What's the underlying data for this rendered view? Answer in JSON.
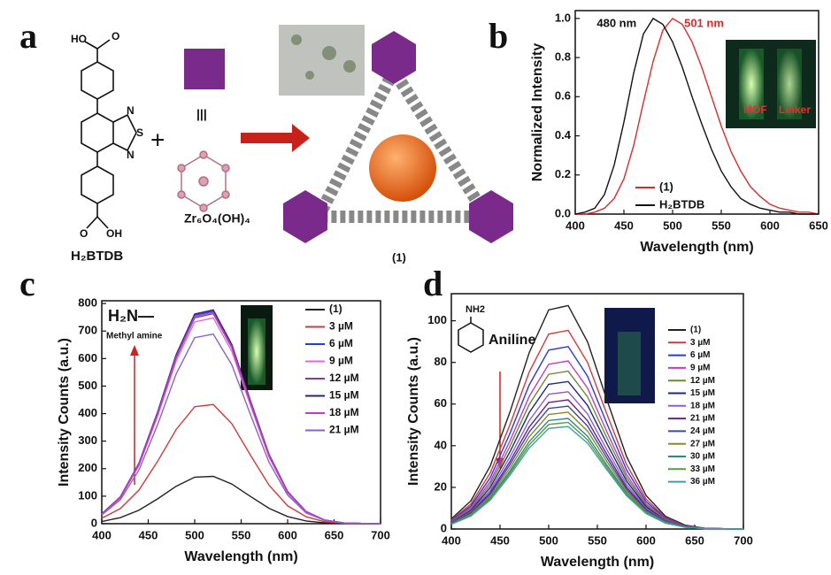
{
  "panels": [
    "a",
    "b",
    "c",
    "d"
  ],
  "scheme": {
    "linker": "H₂BTDB",
    "cluster": "Zr₆O₄(OH)₄",
    "product": "(1)",
    "atoms": [
      "HO",
      "O",
      "N",
      "S",
      "N",
      "O",
      "OH"
    ]
  },
  "chart_data": [
    {
      "type": "line",
      "xlabel": "Wavelength (nm)",
      "ylabel": "Normalized Intensity",
      "annotations": [
        "480 nm",
        "501 nm"
      ],
      "inset_labels": [
        "MOF",
        "Linker"
      ],
      "legend": "lower right",
      "x": [
        400,
        410,
        420,
        430,
        440,
        450,
        460,
        470,
        480,
        490,
        500,
        510,
        520,
        530,
        540,
        550,
        560,
        570,
        580,
        590,
        600,
        610,
        620,
        630,
        640,
        650
      ],
      "series": [
        {
          "name": "(1)",
          "color": "#d92b2b",
          "values": [
            0,
            0,
            0.01,
            0.03,
            0.08,
            0.18,
            0.35,
            0.57,
            0.78,
            0.94,
            1.0,
            0.97,
            0.88,
            0.75,
            0.6,
            0.45,
            0.32,
            0.22,
            0.14,
            0.09,
            0.05,
            0.03,
            0.02,
            0.01,
            0.01,
            0
          ]
        },
        {
          "name": "H₂BTDB",
          "color": "#111111",
          "values": [
            0,
            0.01,
            0.03,
            0.1,
            0.25,
            0.47,
            0.72,
            0.92,
            1.0,
            0.97,
            0.88,
            0.75,
            0.6,
            0.46,
            0.33,
            0.22,
            0.14,
            0.08,
            0.05,
            0.03,
            0.02,
            0.01,
            0.01,
            0,
            0,
            0
          ]
        }
      ],
      "xlim": [
        400,
        650
      ],
      "xticks": [
        400,
        450,
        500,
        550,
        600,
        650
      ],
      "ylim": [
        0,
        1.04
      ],
      "yticks": [
        {
          "value": 0,
          "label": "0.0"
        },
        {
          "value": 0.2,
          "label": "0.2"
        },
        {
          "value": 0.4,
          "label": "0.4"
        },
        {
          "value": 0.6,
          "label": "0.6"
        },
        {
          "value": 0.8,
          "label": "0.8"
        },
        {
          "value": 1.0,
          "label": "1.0"
        }
      ]
    },
    {
      "type": "line",
      "xlabel": "Wavelength (nm)",
      "ylabel": "Intensity Counts (a.u.)",
      "annotations": [
        "H₂N—",
        "Methyl amine"
      ],
      "legend": "upper right",
      "x": [
        400,
        420,
        440,
        460,
        480,
        500,
        520,
        540,
        560,
        580,
        600,
        620,
        640,
        660,
        680,
        700
      ],
      "series": [
        {
          "name": "(1)",
          "color": "#222222",
          "values": [
            8,
            22,
            49,
            90,
            136,
            169,
            172,
            144,
            99,
            56,
            26,
            10,
            3,
            1,
            0,
            0
          ]
        },
        {
          "name": "3 µM",
          "color": "#d13a3a",
          "values": [
            20,
            55,
            122,
            226,
            342,
            425,
            433,
            363,
            249,
            140,
            65,
            25,
            7,
            2,
            0,
            0
          ]
        },
        {
          "name": "6 µM",
          "color": "#2a3bd6",
          "values": [
            35,
            97,
            218,
            403,
            610,
            758,
            772,
            647,
            444,
            250,
            116,
            44,
            13,
            3,
            1,
            0
          ]
        },
        {
          "name": "9 µM",
          "color": "#e06ad0",
          "values": [
            34,
            94,
            211,
            390,
            591,
            733,
            748,
            626,
            430,
            242,
            112,
            43,
            13,
            3,
            1,
            0
          ]
        },
        {
          "name": "12 µM",
          "color": "#7a3fa8",
          "values": [
            35,
            96,
            215,
            398,
            602,
            748,
            763,
            639,
            439,
            247,
            115,
            43,
            13,
            3,
            1,
            0
          ]
        },
        {
          "name": "15 µM",
          "color": "#1c2a7a",
          "values": [
            36,
            98,
            220,
            405,
            614,
            762,
            777,
            651,
            447,
            252,
            117,
            44,
            13,
            3,
            1,
            0
          ]
        },
        {
          "name": "18 µM",
          "color": "#c33cc0",
          "values": [
            35,
            97,
            217,
            400,
            606,
            753,
            768,
            643,
            441,
            249,
            115,
            44,
            13,
            3,
            1,
            0
          ]
        },
        {
          "name": "21 µM",
          "color": "#8f5fc9",
          "values": [
            32,
            87,
            195,
            359,
            544,
            676,
            689,
            577,
            396,
            223,
            104,
            39,
            12,
            3,
            1,
            0
          ]
        }
      ],
      "xlim": [
        400,
        700
      ],
      "xticks": [
        400,
        450,
        500,
        550,
        600,
        650,
        700
      ],
      "ylim": [
        0,
        810
      ],
      "yticks": [
        0,
        100,
        200,
        300,
        400,
        500,
        600,
        700,
        800
      ]
    },
    {
      "type": "line",
      "xlabel": "Wavelength (nm)",
      "ylabel": "Intensity Counts (a.u.)",
      "annotations": [
        "NH2",
        "Aniline"
      ],
      "legend": "upper right",
      "x": [
        400,
        420,
        440,
        460,
        480,
        500,
        520,
        540,
        560,
        580,
        600,
        620,
        640,
        660,
        680,
        700
      ],
      "series": [
        {
          "name": "(1)",
          "color": "#222222",
          "values": [
            4.9,
            13.5,
            30.3,
            55.9,
            84.7,
            105.2,
            107.3,
            89.8,
            61.7,
            34.8,
            16.1,
            6.1,
            1.9,
            0.4,
            0.1,
            0
          ]
        },
        {
          "name": "3 µM",
          "color": "#d13a3a",
          "values": [
            4.4,
            12.0,
            27.0,
            49.8,
            75.4,
            93.6,
            95.4,
            79.9,
            54.9,
            30.9,
            14.4,
            5.4,
            1.6,
            0.4,
            0.1,
            0
          ]
        },
        {
          "name": "6 µM",
          "color": "#2a3bd6",
          "values": [
            4.0,
            11.0,
            24.7,
            45.7,
            69.2,
            85.9,
            87.6,
            73.3,
            50.4,
            28.4,
            13.2,
            5.0,
            1.5,
            0.4,
            0.1,
            0
          ]
        },
        {
          "name": "9 µM",
          "color": "#c33cc0",
          "values": [
            3.7,
            10.2,
            22.8,
            42.1,
            63.7,
            79.1,
            80.7,
            67.6,
            46.4,
            26.2,
            12.1,
            4.6,
            1.4,
            0.3,
            0.1,
            0
          ]
        },
        {
          "name": "12 µM",
          "color": "#6b8a3a",
          "values": [
            3.5,
            9.5,
            21.4,
            39.5,
            59.8,
            74.3,
            75.8,
            63.4,
            43.6,
            24.6,
            11.4,
            4.3,
            1.3,
            0.3,
            0.1,
            0
          ]
        },
        {
          "name": "15 µM",
          "color": "#1c2a7a",
          "values": [
            3.2,
            8.9,
            20.0,
            36.9,
            55.9,
            69.5,
            70.8,
            59.3,
            40.8,
            23.0,
            10.7,
            4.0,
            1.2,
            0.3,
            0.1,
            0
          ]
        },
        {
          "name": "18 µM",
          "color": "#8f5fc9",
          "values": [
            3.0,
            8.3,
            18.6,
            34.4,
            52.1,
            64.7,
            65.9,
            55.2,
            37.9,
            21.4,
            9.9,
            3.8,
            1.1,
            0.3,
            0.1,
            0
          ]
        },
        {
          "name": "21 µM",
          "color": "#6a1f8a",
          "values": [
            2.8,
            7.8,
            17.5,
            32.3,
            49.0,
            60.8,
            62.0,
            51.9,
            35.7,
            20.1,
            9.3,
            3.5,
            1.1,
            0.3,
            0.1,
            0
          ]
        },
        {
          "name": "24 µM",
          "color": "#3a4aa0",
          "values": [
            2.7,
            7.4,
            16.7,
            30.8,
            46.6,
            57.9,
            59.0,
            49.4,
            34.0,
            19.1,
            8.9,
            3.4,
            1.0,
            0.2,
            0.1,
            0
          ]
        },
        {
          "name": "27 µM",
          "color": "#8a8a2a",
          "values": [
            2.6,
            7.1,
            15.8,
            29.2,
            44.3,
            55.0,
            56.1,
            47.0,
            32.3,
            18.2,
            8.4,
            3.2,
            1.0,
            0.2,
            0.1,
            0
          ]
        },
        {
          "name": "30 µM",
          "color": "#2a8a8a",
          "values": [
            2.4,
            6.7,
            15.0,
            27.7,
            42.0,
            52.1,
            53.1,
            44.5,
            30.6,
            17.2,
            8.0,
            3.0,
            0.9,
            0.2,
            0.1,
            0
          ]
        },
        {
          "name": "33 µM",
          "color": "#5a9a3a",
          "values": [
            2.3,
            6.4,
            14.5,
            26.7,
            40.4,
            50.2,
            51.2,
            42.8,
            29.4,
            16.6,
            7.7,
            2.9,
            0.9,
            0.2,
            0.1,
            0
          ]
        },
        {
          "name": "36 µM",
          "color": "#3aa0a0",
          "values": [
            2.3,
            6.2,
            13.9,
            25.7,
            38.9,
            48.3,
            49.2,
            41.2,
            28.3,
            16.0,
            7.4,
            2.8,
            0.9,
            0.2,
            0.1,
            0
          ]
        }
      ],
      "xlim": [
        400,
        700
      ],
      "xticks": [
        400,
        450,
        500,
        550,
        600,
        650,
        700
      ],
      "ylim": [
        0,
        113
      ],
      "yticks": [
        0,
        20,
        40,
        60,
        80,
        100
      ]
    }
  ]
}
